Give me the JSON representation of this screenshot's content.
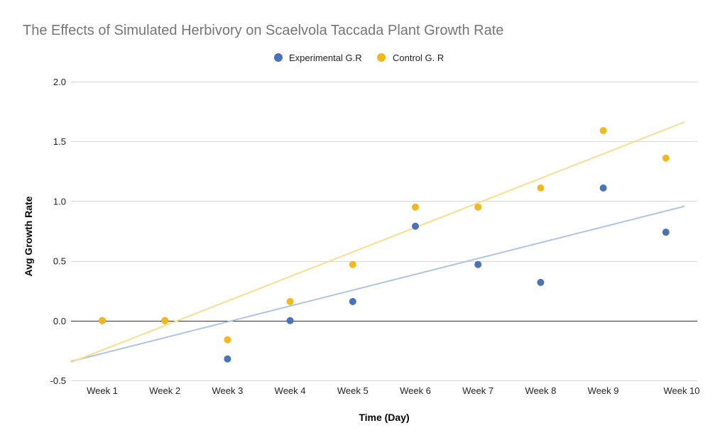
{
  "chart_data": {
    "type": "scatter",
    "title": "The Effects of Simulated Herbivory on Scaelvola Taccada Plant Growth Rate",
    "xlabel": "Time (Day)",
    "ylabel": "Avg Growth Rate",
    "categories": [
      "Week 1",
      "Week 2",
      "Week 3",
      "Week 4",
      "Week 5",
      "Week 6",
      "Week 7",
      "Week 8",
      "Week 9",
      "Week 10"
    ],
    "ylim": [
      -0.5,
      2.0
    ],
    "yticks": [
      "2.0",
      "1.5",
      "1.0",
      "0.5",
      "0.0",
      "-0.5"
    ],
    "ytick_values": [
      2.0,
      1.5,
      1.0,
      0.5,
      0.0,
      -0.5
    ],
    "grid": true,
    "legend_position": "top-center",
    "series": [
      {
        "name": "Experimental G.R",
        "color": "#4a72b8",
        "trend_color": "#a9c4e6",
        "x": [
          1,
          2,
          3,
          4,
          5,
          6,
          7,
          8,
          9,
          10
        ],
        "values": [
          0,
          0,
          -0.32,
          0,
          0.16,
          0.79,
          0.47,
          0.32,
          1.11,
          0.74
        ],
        "trendline": {
          "slope": 0.1325,
          "intercept": -0.4074,
          "x_from": 0.5,
          "x_to": 10.3
        }
      },
      {
        "name": "Control G. R",
        "color": "#f2b81e",
        "trend_color": "#f9dd8f",
        "x": [
          1,
          2,
          3,
          4,
          5,
          6,
          7,
          8,
          9,
          10
        ],
        "values": [
          0,
          0,
          -0.16,
          0.16,
          0.47,
          0.95,
          0.95,
          1.11,
          1.59,
          1.36
        ],
        "trendline": {
          "slope": 0.2053,
          "intercept": -0.452,
          "x_from": 0.5,
          "x_to": 10.3
        }
      }
    ]
  }
}
